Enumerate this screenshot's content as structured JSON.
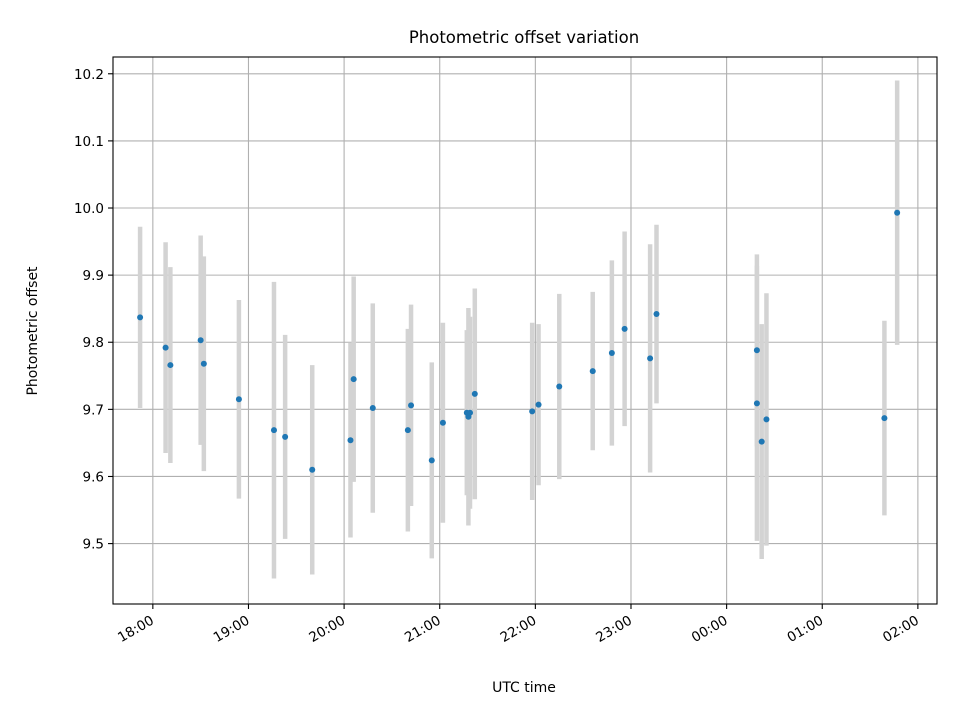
{
  "chart_data": {
    "type": "scatter",
    "title": "Photometric offset variation",
    "xlabel": "UTC time",
    "ylabel": "Photometric offset",
    "xlim": [
      "17:35",
      "02:12"
    ],
    "ylim": [
      9.41,
      10.225
    ],
    "grid": true,
    "x_ticks": [
      "18:00",
      "19:00",
      "20:00",
      "21:00",
      "22:00",
      "23:00",
      "00:00",
      "01:00",
      "02:00"
    ],
    "y_ticks": [
      9.5,
      9.6,
      9.7,
      9.8,
      9.9,
      10.0,
      10.1,
      10.2
    ],
    "y_tick_labels": [
      "9.5",
      "9.6",
      "9.7",
      "9.8",
      "9.9",
      "10.0",
      "10.1",
      "10.2"
    ],
    "errorbar_color": "#d3d3d3",
    "point_color": "#1f77b4",
    "series": [
      {
        "points": [
          {
            "t": "17:52",
            "y": 9.837,
            "err": 0.135
          },
          {
            "t": "18:08",
            "y": 9.792,
            "err": 0.157
          },
          {
            "t": "18:11",
            "y": 9.766,
            "err": 0.146
          },
          {
            "t": "18:30",
            "y": 9.803,
            "err": 0.156
          },
          {
            "t": "18:32",
            "y": 9.768,
            "err": 0.16
          },
          {
            "t": "18:54",
            "y": 9.715,
            "err": 0.148
          },
          {
            "t": "19:16",
            "y": 9.669,
            "err": 0.221
          },
          {
            "t": "19:23",
            "y": 9.659,
            "err": 0.152
          },
          {
            "t": "19:40",
            "y": 9.61,
            "err": 0.156
          },
          {
            "t": "20:04",
            "y": 9.654,
            "err": 0.145
          },
          {
            "t": "20:06",
            "y": 9.745,
            "err": 0.153
          },
          {
            "t": "20:18",
            "y": 9.702,
            "err": 0.156
          },
          {
            "t": "20:40",
            "y": 9.669,
            "err": 0.151
          },
          {
            "t": "20:42",
            "y": 9.706,
            "err": 0.15
          },
          {
            "t": "20:55",
            "y": 9.624,
            "err": 0.146
          },
          {
            "t": "21:02",
            "y": 9.68,
            "err": 0.149
          },
          {
            "t": "21:17",
            "y": 9.695,
            "err": 0.123
          },
          {
            "t": "21:18",
            "y": 9.689,
            "err": 0.162
          },
          {
            "t": "21:19",
            "y": 9.695,
            "err": 0.143
          },
          {
            "t": "21:22",
            "y": 9.723,
            "err": 0.157
          },
          {
            "t": "21:58",
            "y": 9.697,
            "err": 0.132
          },
          {
            "t": "22:02",
            "y": 9.707,
            "err": 0.12
          },
          {
            "t": "22:15",
            "y": 9.734,
            "err": 0.138
          },
          {
            "t": "22:36",
            "y": 9.757,
            "err": 0.118
          },
          {
            "t": "22:48",
            "y": 9.784,
            "err": 0.138
          },
          {
            "t": "22:56",
            "y": 9.82,
            "err": 0.145
          },
          {
            "t": "23:12",
            "y": 9.776,
            "err": 0.17
          },
          {
            "t": "23:16",
            "y": 9.842,
            "err": 0.133
          },
          {
            "t": "00:19",
            "y": 9.709,
            "err": 0.205
          },
          {
            "t": "00:19",
            "y": 9.788,
            "err": 0.143
          },
          {
            "t": "00:22",
            "y": 9.652,
            "err": 0.175
          },
          {
            "t": "00:25",
            "y": 9.685,
            "err": 0.188
          },
          {
            "t": "01:39",
            "y": 9.687,
            "err": 0.145
          },
          {
            "t": "01:47",
            "y": 9.993,
            "err": 0.197
          }
        ]
      }
    ]
  }
}
